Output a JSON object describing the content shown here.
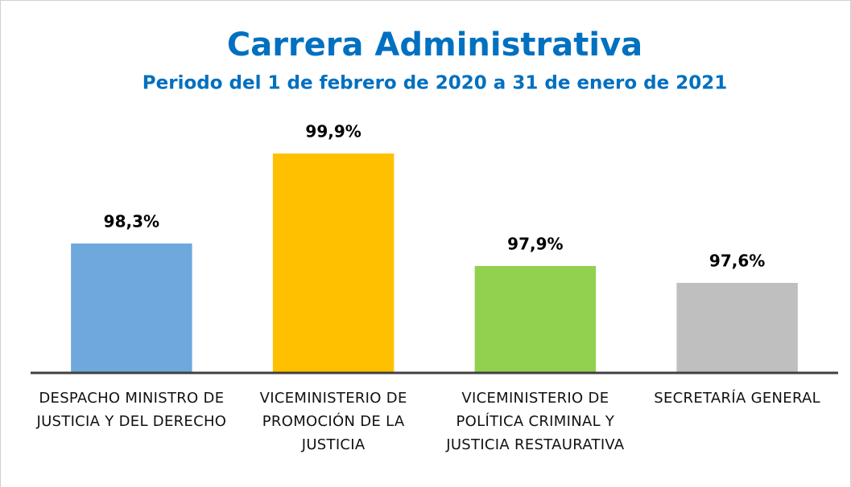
{
  "chart_data": {
    "type": "bar",
    "title": "Carrera Administrativa",
    "subtitle": "Periodo del 1 de febrero de 2020 a 31 de enero de 2021",
    "categories": [
      "DESPACHO MINISTRO DE JUSTICIA Y DEL DERECHO",
      "VICEMINISTERIO DE PROMOCIÓN DE LA JUSTICIA",
      "VICEMINISTERIO DE POLÍTICA CRIMINAL Y JUSTICIA RESTAURATIVA",
      "SECRETARÍA GENERAL"
    ],
    "values": [
      98.3,
      99.9,
      97.9,
      97.6
    ],
    "value_labels": [
      "98,3%",
      "99,9%",
      "97,9%",
      "97,6%"
    ],
    "colors": [
      "#6fa8dc",
      "#ffc000",
      "#92d050",
      "#bfbfbf"
    ],
    "ylim": [
      96,
      100.4
    ]
  }
}
